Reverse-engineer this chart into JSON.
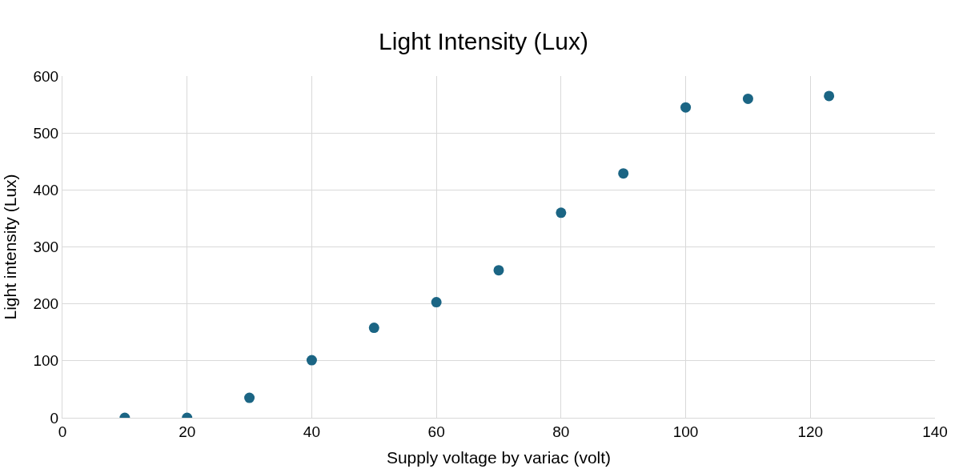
{
  "chart_data": {
    "type": "scatter",
    "title": "Light Intensity (Lux)",
    "xlabel": "Supply voltage by variac (volt)",
    "ylabel": "Light intensity (Lux)",
    "x": [
      10,
      20,
      30,
      40,
      50,
      60,
      70,
      80,
      90,
      100,
      110,
      123
    ],
    "series": [
      {
        "color": "#1b6584",
        "values": [
          0,
          0,
          35,
          101,
          158,
          203,
          259,
          360,
          429,
          545,
          560,
          565
        ]
      }
    ],
    "xlim": [
      0,
      140
    ],
    "xticks": [
      0,
      20,
      40,
      60,
      80,
      100,
      120,
      140
    ],
    "ylim": [
      0,
      600
    ],
    "yticks": [
      0,
      100,
      200,
      300,
      400,
      500,
      600
    ],
    "grid": true,
    "marker": "circle"
  }
}
